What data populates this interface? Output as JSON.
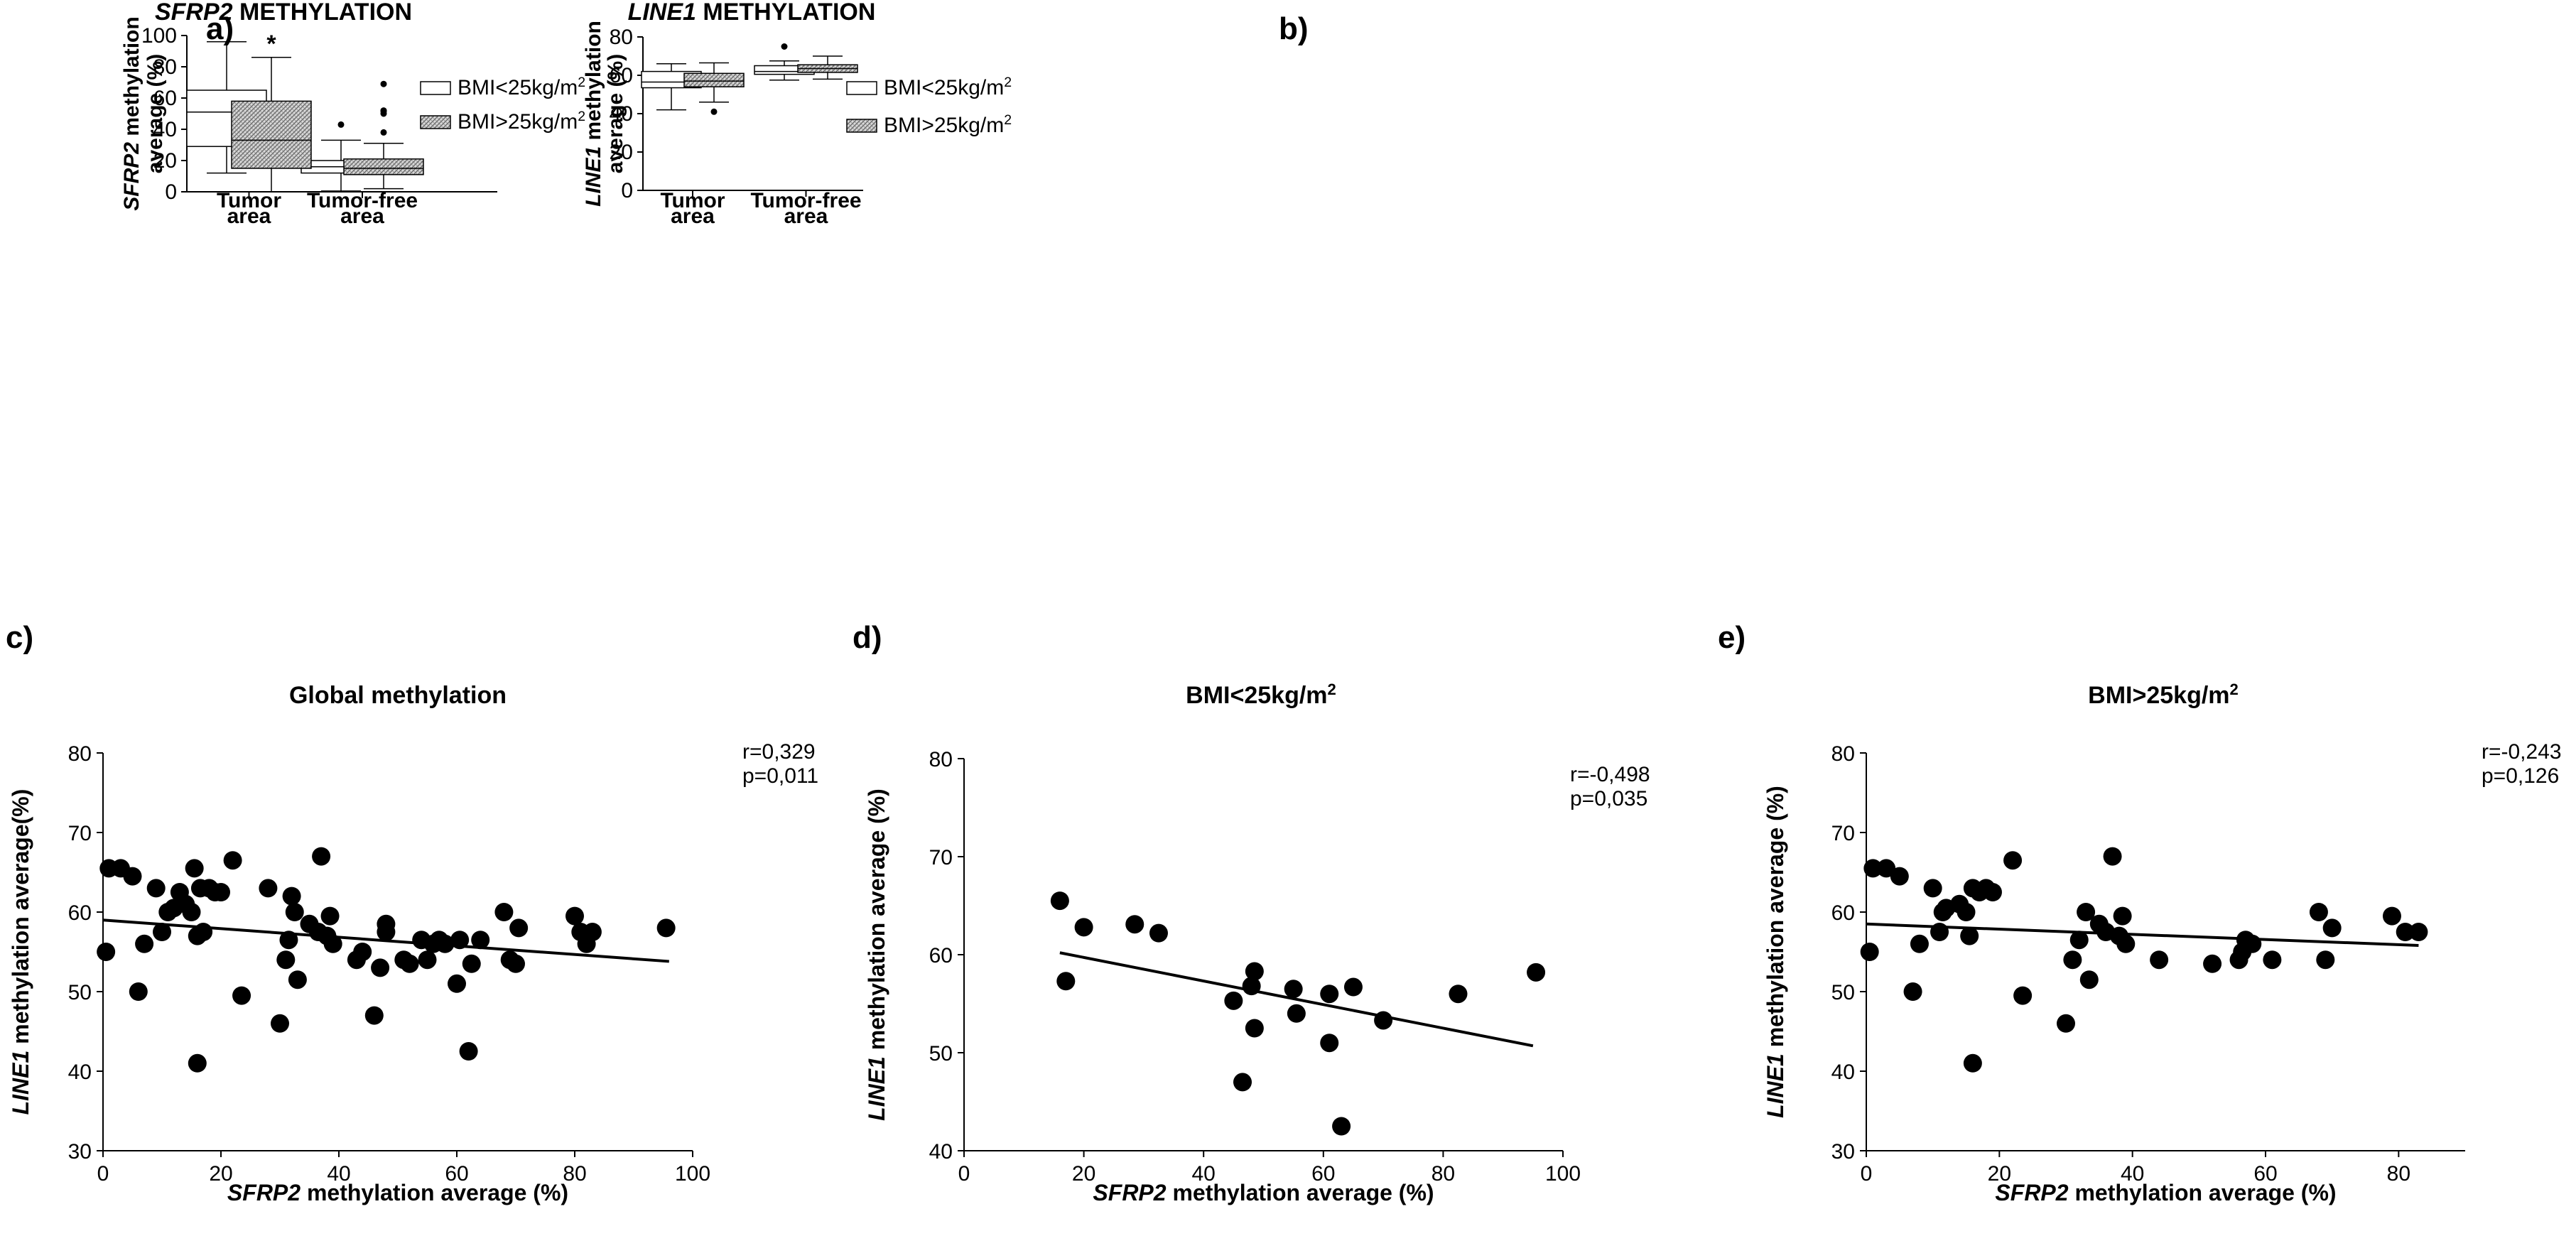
{
  "figure": {
    "panels": {
      "a": "a)",
      "b": "b)",
      "c": "c)",
      "d": "d)",
      "e": "e)"
    }
  },
  "chart_data": [
    {
      "id": "a",
      "type": "box",
      "title_gene": "SFRP2",
      "title_rest": " METHYLATION",
      "ylabel_line1_gene": "SFRP2",
      "ylabel_line1_rest": " methylation",
      "ylabel_line2": "average  (%)",
      "ylim": [
        0,
        100
      ],
      "yticks": [
        0,
        20,
        40,
        60,
        80,
        100
      ],
      "categories": [
        {
          "line1": "Tumor",
          "line2": "area"
        },
        {
          "line1": "Tumor-free",
          "line2": "area"
        }
      ],
      "legend": [
        "BMI<25kg/m",
        "BMI>25kg/m"
      ],
      "legend_sup": "2",
      "series": [
        {
          "name": "BMI<25kg/m2",
          "pattern": "white",
          "boxes": [
            {
              "min": 12,
              "q1": 29,
              "median": 51,
              "q3": 65,
              "max": 96,
              "outliers": []
            },
            {
              "min": 0.5,
              "q1": 12,
              "median": 16,
              "q3": 20,
              "max": 33,
              "outliers": [
                43
              ]
            }
          ]
        },
        {
          "name": "BMI>25kg/m2",
          "pattern": "hatched",
          "boxes": [
            {
              "min": 0,
              "q1": 15,
              "median": 33,
              "q3": 58,
              "max": 86,
              "outliers": []
            },
            {
              "min": 2,
              "q1": 11,
              "median": 15,
              "q3": 21,
              "max": 31,
              "outliers": [
                38,
                50,
                51.5,
                52,
                69
              ]
            }
          ]
        }
      ],
      "annotations": [
        {
          "text": "*",
          "series": 1,
          "category": 0
        }
      ]
    },
    {
      "id": "b",
      "type": "box",
      "title_gene": "LINE1",
      "title_rest": " METHYLATION",
      "ylabel_line1_gene": "LINE1",
      "ylabel_line1_rest": " methylation",
      "ylabel_line2": "average  (%)",
      "ylim": [
        0,
        80
      ],
      "yticks": [
        0,
        20,
        40,
        60,
        80
      ],
      "categories": [
        {
          "line1": "Tumor",
          "line2": "area"
        },
        {
          "line1": "Tumor-free",
          "line2": "area"
        }
      ],
      "legend": [
        "BMI<25kg/m",
        "BMI>25kg/m"
      ],
      "legend_sup": "2",
      "series": [
        {
          "name": "BMI<25kg/m2",
          "pattern": "white",
          "boxes": [
            {
              "min": 42,
              "q1": 53.5,
              "median": 56.5,
              "q3": 62,
              "max": 66,
              "outliers": []
            },
            {
              "min": 57.5,
              "q1": 60.5,
              "median": 62,
              "q3": 65,
              "max": 67.5,
              "outliers": [
                75
              ]
            }
          ]
        },
        {
          "name": "BMI>25kg/m2",
          "pattern": "hatched",
          "boxes": [
            {
              "min": 46,
              "q1": 54,
              "median": 57,
              "q3": 61,
              "max": 66.5,
              "outliers": [
                41
              ]
            },
            {
              "min": 58,
              "q1": 61.5,
              "median": 63.5,
              "q3": 65.5,
              "max": 70,
              "outliers": []
            }
          ]
        }
      ]
    },
    {
      "id": "c",
      "type": "scatter",
      "title": "Global methylation",
      "title_sup": "",
      "xlabel_gene": "SFRP2",
      "xlabel_rest": " methylation average (%)",
      "ylabel_gene": "LINE1",
      "ylabel_rest": " methylation average(%)",
      "xlim": [
        0,
        100
      ],
      "ylim": [
        30,
        80
      ],
      "xticks": [
        0,
        20,
        40,
        60,
        80,
        100
      ],
      "yticks": [
        30,
        40,
        50,
        60,
        70,
        80
      ],
      "stats": {
        "r": "r=0,329",
        "p": "p=0,011"
      },
      "fit": {
        "x1": 0,
        "y1": 59,
        "x2": 96,
        "y2": 53.8
      },
      "points": [
        [
          0.5,
          55
        ],
        [
          1,
          65.5
        ],
        [
          3,
          65.5
        ],
        [
          5,
          64.5
        ],
        [
          6,
          50
        ],
        [
          7,
          56
        ],
        [
          9,
          63
        ],
        [
          10,
          57.5
        ],
        [
          11,
          60
        ],
        [
          12,
          60.5
        ],
        [
          13,
          62.5
        ],
        [
          14,
          61
        ],
        [
          15,
          60
        ],
        [
          15.5,
          65.5
        ],
        [
          16,
          57
        ],
        [
          16,
          41
        ],
        [
          16.5,
          63
        ],
        [
          17,
          57.5
        ],
        [
          18,
          63
        ],
        [
          19,
          62.5
        ],
        [
          20,
          62.5
        ],
        [
          22,
          66.5
        ],
        [
          23.5,
          49.5
        ],
        [
          28,
          63
        ],
        [
          30,
          46
        ],
        [
          31,
          54
        ],
        [
          31.5,
          56.5
        ],
        [
          32,
          62
        ],
        [
          32.5,
          60
        ],
        [
          33,
          51.5
        ],
        [
          35,
          58.5
        ],
        [
          36.5,
          57.5
        ],
        [
          37,
          67
        ],
        [
          38,
          57
        ],
        [
          38.5,
          59.5
        ],
        [
          39,
          56
        ],
        [
          43,
          54
        ],
        [
          44,
          55
        ],
        [
          46,
          47
        ],
        [
          47,
          53
        ],
        [
          48,
          57.5
        ],
        [
          48,
          58.5
        ],
        [
          51,
          54
        ],
        [
          52,
          53.5
        ],
        [
          54,
          56.5
        ],
        [
          55,
          54
        ],
        [
          56,
          56
        ],
        [
          57,
          56.5
        ],
        [
          58,
          56
        ],
        [
          60,
          51
        ],
        [
          60.5,
          56.5
        ],
        [
          62,
          42.5
        ],
        [
          62.5,
          53.5
        ],
        [
          64,
          56.5
        ],
        [
          68,
          60
        ],
        [
          69,
          54
        ],
        [
          70,
          53.5
        ],
        [
          70.5,
          58
        ],
        [
          80,
          59.5
        ],
        [
          81,
          57.5
        ],
        [
          82,
          56
        ],
        [
          83,
          57.5
        ],
        [
          95.5,
          58
        ]
      ]
    },
    {
      "id": "d",
      "type": "scatter",
      "title": "BMI<25kg/m",
      "title_sup": "2",
      "xlabel_gene": "SFRP2",
      "xlabel_rest": " methylation average (%)",
      "ylabel_gene": "LINE1",
      "ylabel_rest": " methylation average (%)",
      "xlim": [
        0,
        100
      ],
      "ylim": [
        40,
        80
      ],
      "xticks": [
        0,
        20,
        40,
        60,
        80,
        100
      ],
      "yticks": [
        40,
        50,
        60,
        70,
        80
      ],
      "stats": {
        "r": "r=-0,498",
        "p": "p=0,035"
      },
      "fit": {
        "x1": 16,
        "y1": 60.2,
        "x2": 95,
        "y2": 50.7
      },
      "points": [
        [
          16,
          65.5
        ],
        [
          17,
          57.3
        ],
        [
          20,
          62.8
        ],
        [
          28.5,
          63.1
        ],
        [
          32.5,
          62.2
        ],
        [
          45,
          55.3
        ],
        [
          46.5,
          47
        ],
        [
          48,
          56.8
        ],
        [
          48.5,
          58.3
        ],
        [
          48.5,
          52.5
        ],
        [
          55,
          56.5
        ],
        [
          55.5,
          54
        ],
        [
          61,
          56
        ],
        [
          61,
          51
        ],
        [
          63,
          42.5
        ],
        [
          65,
          56.7
        ],
        [
          70,
          53.3
        ],
        [
          82.5,
          56
        ],
        [
          95.5,
          58.2
        ]
      ]
    },
    {
      "id": "e",
      "type": "scatter",
      "title": "BMI>25kg/m",
      "title_sup": "2",
      "xlabel_gene": "SFRP2",
      "xlabel_rest": " methylation average (%)",
      "ylabel_gene": "LINE1",
      "ylabel_rest": " methylation average (%)",
      "xlim": [
        0,
        90
      ],
      "ylim": [
        30,
        80
      ],
      "xticks": [
        0,
        20,
        40,
        60,
        80
      ],
      "yticks": [
        30,
        40,
        50,
        60,
        70,
        80
      ],
      "stats": {
        "r": "r=-0,243",
        "p": "p=0,126"
      },
      "fit": {
        "x1": 0,
        "y1": 58.5,
        "x2": 83,
        "y2": 55.8
      },
      "points": [
        [
          0.5,
          55
        ],
        [
          1,
          65.5
        ],
        [
          3,
          65.5
        ],
        [
          5,
          64.5
        ],
        [
          7,
          50
        ],
        [
          8,
          56
        ],
        [
          10,
          63
        ],
        [
          11,
          57.5
        ],
        [
          11.5,
          60
        ],
        [
          12,
          60.5
        ],
        [
          14,
          61
        ],
        [
          15,
          60
        ],
        [
          15.5,
          57
        ],
        [
          16,
          63
        ],
        [
          16,
          41
        ],
        [
          17,
          62.5
        ],
        [
          18,
          63
        ],
        [
          19,
          62.5
        ],
        [
          22,
          66.5
        ],
        [
          23.5,
          49.5
        ],
        [
          30,
          46
        ],
        [
          31,
          54
        ],
        [
          32,
          56.5
        ],
        [
          33,
          60
        ],
        [
          33.5,
          51.5
        ],
        [
          35,
          58.5
        ],
        [
          36,
          57.5
        ],
        [
          37,
          67
        ],
        [
          38,
          57
        ],
        [
          38.5,
          59.5
        ],
        [
          39,
          56
        ],
        [
          44,
          54
        ],
        [
          52,
          53.5
        ],
        [
          56,
          54
        ],
        [
          56.5,
          55
        ],
        [
          57,
          56.5
        ],
        [
          58,
          56
        ],
        [
          61,
          54
        ],
        [
          68,
          60
        ],
        [
          69,
          54
        ],
        [
          70,
          58
        ],
        [
          79,
          59.5
        ],
        [
          81,
          57.5
        ],
        [
          83,
          57.5
        ]
      ]
    }
  ]
}
